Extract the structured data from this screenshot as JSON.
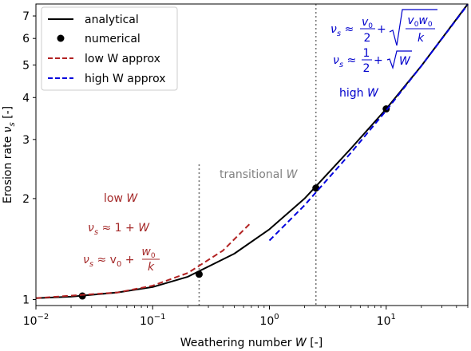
{
  "chart_data": {
    "type": "line",
    "xscale": "log",
    "yscale": "log",
    "xlim": [
      0.01,
      50
    ],
    "ylim": [
      0.96,
      7.6
    ],
    "xlabel": "Weathering number  W  [-]",
    "ylabel": "Erosion rate  νs  [-]",
    "x_ticks": [
      {
        "value": 0.01,
        "base": "10",
        "exp": "−2"
      },
      {
        "value": 0.1,
        "base": "10",
        "exp": "−1"
      },
      {
        "value": 1,
        "base": "10",
        "exp": "0"
      },
      {
        "value": 10,
        "base": "10",
        "exp": "1"
      }
    ],
    "y_ticks": [
      {
        "value": 1,
        "label": "1"
      },
      {
        "value": 2,
        "label": "2"
      },
      {
        "value": 3,
        "label": "3"
      },
      {
        "value": 4,
        "label": "4"
      },
      {
        "value": 5,
        "label": "5"
      },
      {
        "value": 6,
        "label": "6"
      },
      {
        "value": 7,
        "label": "7"
      }
    ],
    "series": [
      {
        "name": "analytical",
        "style": "solid",
        "color": "#000000",
        "x": [
          0.01,
          0.02,
          0.05,
          0.1,
          0.2,
          0.5,
          1,
          2,
          5,
          10,
          20,
          50
        ],
        "y": [
          1.01,
          1.02,
          1.05,
          1.09,
          1.17,
          1.37,
          1.62,
          2.0,
          2.82,
          3.7,
          4.97,
          7.6
        ]
      },
      {
        "name": "numerical",
        "style": "markers",
        "color": "#000000",
        "x": [
          0.025,
          0.25,
          2.5,
          10
        ],
        "y": [
          1.025,
          1.19,
          2.15,
          3.7
        ]
      },
      {
        "name": "low W approx",
        "style": "dashed",
        "color": "#b22222",
        "x": [
          0.01,
          0.05,
          0.1,
          0.2,
          0.4,
          0.7
        ],
        "y": [
          1.01,
          1.05,
          1.1,
          1.2,
          1.4,
          1.7
        ]
      },
      {
        "name": "high W approx",
        "style": "dashed",
        "color": "#0000dd",
        "x": [
          1,
          2,
          5,
          10,
          20,
          50
        ],
        "y": [
          1.5,
          1.91,
          2.74,
          3.66,
          4.97,
          7.57
        ]
      }
    ],
    "vlines": [
      {
        "x": 0.25,
        "style": "dotted",
        "color": "#777777"
      },
      {
        "x": 2.5,
        "style": "dotted",
        "color": "#777777"
      }
    ],
    "legend_position": "top-left",
    "annotations": {
      "transitional": {
        "text": "transitional",
        "var": "W",
        "color": "#808080"
      },
      "low": {
        "color": "#a52a2a",
        "title": "low",
        "var": "W",
        "eq1_lhs": "ν",
        "eq1_sub": "s",
        "eq1_rhs": " ≈ 1 + ",
        "eq2_lhs": "ν",
        "eq2_sub": "s",
        "eq2_mid": " ≈ v",
        "eq2_sub2": "0",
        "eq2_plus": " + ",
        "eq2_num": "w",
        "eq2_num_sub": "0",
        "eq2_den": "k"
      },
      "high": {
        "color": "#0000cc",
        "title": "high",
        "var": "W",
        "eq1_lhs": "ν",
        "eq1_sub": "s",
        "eq1_rhs": " ≈ ",
        "eq1_frac_num": "v",
        "eq1_frac_num_sub": "0",
        "eq1_frac_den": "2",
        "eq1_plus": " + ",
        "eq1_sqrt_num": "v",
        "eq1_sqrt_num_sub": "0",
        "eq1_sqrt_num2": "w",
        "eq1_sqrt_num2_sub": "0",
        "eq1_sqrt_den": "k",
        "eq2_lhs": "ν",
        "eq2_sub": "s",
        "eq2_rhs": " ≈ ",
        "eq2_frac_num": "1",
        "eq2_frac_den": "2",
        "eq2_plus": " + ",
        "eq2_sqrt": "W"
      }
    }
  }
}
